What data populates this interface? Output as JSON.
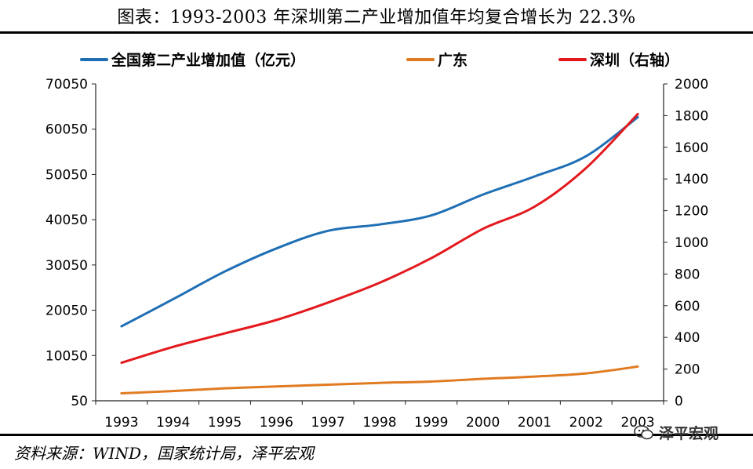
{
  "header": {
    "title": "图表：1993-2003 年深圳第二产业增加值年均复合增长为 22.3%"
  },
  "footer": {
    "source": "资料来源：WIND，国家统计局，泽平宏观",
    "watermark": "泽平宏观"
  },
  "colors": {
    "national": "#1f6fb5",
    "guangdong": "#e07b21",
    "shenzhen": "#e3191e"
  },
  "chart_data": {
    "type": "line",
    "categories": [
      "1993",
      "1994",
      "1995",
      "1996",
      "1997",
      "1998",
      "1999",
      "2000",
      "2001",
      "2002",
      "2003"
    ],
    "left_axis": {
      "ticks": [
        "70050",
        "60050",
        "50050",
        "40050",
        "30050",
        "20050",
        "10050",
        "50"
      ],
      "range": [
        50,
        70050
      ]
    },
    "right_axis": {
      "ticks": [
        "2000",
        "1800",
        "1600",
        "1400",
        "1200",
        "1000",
        "800",
        "600",
        "400",
        "200",
        "0"
      ],
      "range": [
        0,
        2000
      ]
    },
    "legend_position": "top",
    "series": [
      {
        "name": "全国第二产业增加值（亿元）",
        "axis": "left",
        "color": "#1f6fb5",
        "values": [
          16500,
          22500,
          28600,
          33700,
          37600,
          39000,
          41000,
          45600,
          49600,
          54100,
          62700
        ]
      },
      {
        "name": "广东",
        "axis": "left",
        "color": "#e07b21",
        "values": [
          1700,
          2200,
          2800,
          3200,
          3600,
          4000,
          4300,
          4900,
          5400,
          6100,
          7600
        ]
      },
      {
        "name": "深圳（右轴）",
        "axis": "right",
        "color": "#e3191e",
        "values": [
          240,
          340,
          425,
          510,
          620,
          745,
          900,
          1085,
          1225,
          1470,
          1810
        ]
      }
    ]
  }
}
